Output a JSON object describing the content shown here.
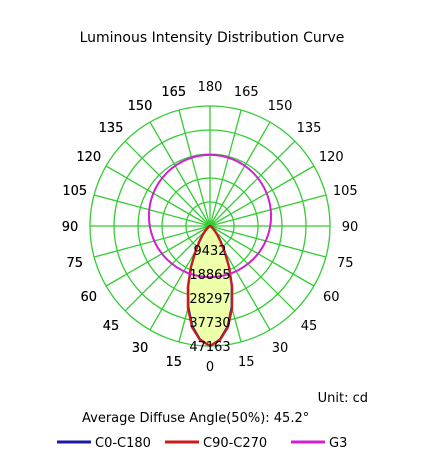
{
  "chart_data": {
    "type": "polar",
    "title": "Luminous Intensity Distribution Curve",
    "unit_label": "Unit: cd",
    "summary_label": "Average Diffuse Angle(50%): 45.2°",
    "angle_labels": [
      "0",
      "15",
      "30",
      "45",
      "60",
      "75",
      "90",
      "105",
      "120",
      "135",
      "150",
      "165",
      "180",
      "165",
      "150",
      "135",
      "120",
      "105",
      "90",
      "75",
      "60",
      "45",
      "30",
      "15"
    ],
    "radial_tick_labels": [
      "9432",
      "18865",
      "28297",
      "37730",
      "47163"
    ],
    "radial_max": 47163,
    "grid": true,
    "legend_position": "bottom",
    "series": [
      {
        "name": "C0-C180",
        "color": "#1a1aa6",
        "angles": [
          0,
          5,
          10,
          15,
          20,
          25,
          30,
          35,
          40,
          45,
          50,
          60,
          70,
          80,
          90
        ],
        "values": [
          47163,
          44800,
          40100,
          33000,
          25000,
          17600,
          11300,
          7000,
          4300,
          2500,
          1400,
          550,
          250,
          150,
          0
        ]
      },
      {
        "name": "C90-C270",
        "color": "#cc1a1a",
        "angles": [
          0,
          5,
          10,
          15,
          20,
          25,
          30,
          35,
          40,
          45,
          50,
          60,
          70,
          80,
          90
        ],
        "values": [
          47163,
          45000,
          40500,
          33500,
          25500,
          17800,
          11500,
          7100,
          4400,
          2600,
          1450,
          600,
          280,
          160,
          0
        ]
      },
      {
        "name": "G3",
        "color": "#d21fd2",
        "angles": [
          0,
          30,
          60,
          90,
          120,
          150,
          180
        ],
        "values": [
          24000,
          24000,
          24000,
          24000,
          24000,
          24000,
          24000
        ]
      }
    ],
    "colors": {
      "grid": "#33cc33",
      "fill": "#eeffaa"
    }
  }
}
